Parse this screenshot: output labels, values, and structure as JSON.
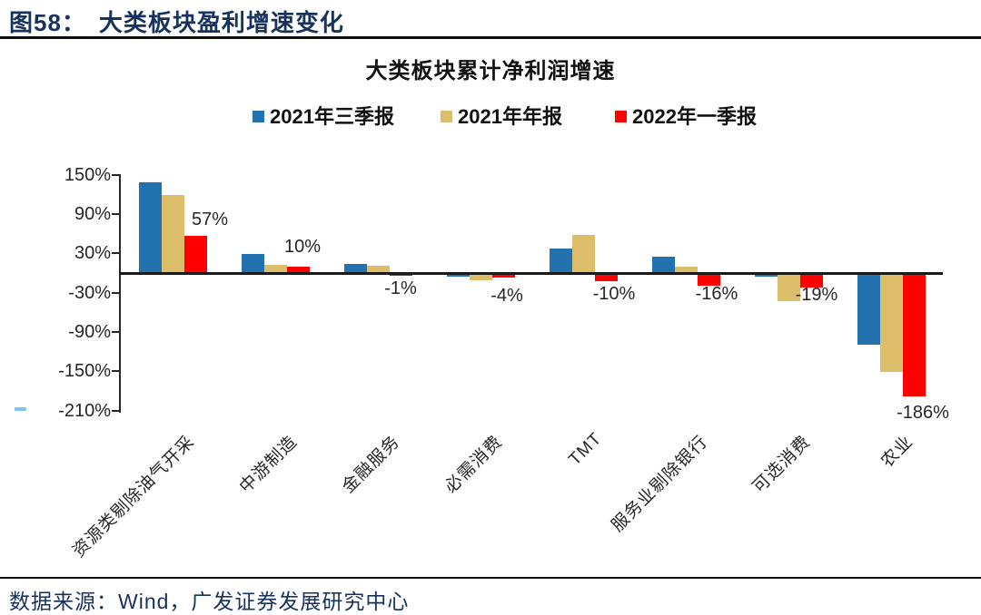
{
  "figure": {
    "number_label": "图58：",
    "title": "大类板块盈利增速变化"
  },
  "source": {
    "text": "数据来源：Wind，广发证券发展研究中心"
  },
  "colors": {
    "heading_navy": "#16325D",
    "axis_black": "#262626",
    "accent_dash_cyan": "#7EC9EA"
  },
  "chart_data": {
    "type": "bar",
    "title": "大类板块累计净利润增速",
    "categories": [
      "资源类剔除油气开采",
      "中游制造",
      "金融服务",
      "必需消费",
      "TMT",
      "服务业剔除银行",
      "可选消费",
      "农业"
    ],
    "series": [
      {
        "name": "2021年三季报",
        "color": "#2172AE",
        "values": [
          139,
          29,
          14,
          -3,
          37,
          25,
          -3,
          -106
        ]
      },
      {
        "name": "2021年年报",
        "color": "#DCBE6A",
        "values": [
          119,
          12,
          11,
          -9,
          58,
          10,
          -40,
          -148
        ]
      },
      {
        "name": "2022年一季报",
        "color": "#FF0000",
        "values": [
          57,
          10,
          -1,
          -4,
          -10,
          -16,
          -19,
          -186
        ]
      }
    ],
    "data_labels": {
      "series": "2022年一季报",
      "values": [
        "57%",
        "10%",
        "-1%",
        "-4%",
        "-10%",
        "-16%",
        "-19%",
        "-186%"
      ]
    },
    "y_axis": {
      "tick_labels": [
        "150%",
        "90%",
        "30%",
        "-30%",
        "-90%",
        "-150%",
        "-210%"
      ],
      "tick_values": [
        150,
        90,
        30,
        -30,
        -90,
        -150,
        -210
      ],
      "ylim": [
        -210,
        150
      ],
      "unit": "%"
    },
    "legend_position": "top",
    "grid": false
  }
}
